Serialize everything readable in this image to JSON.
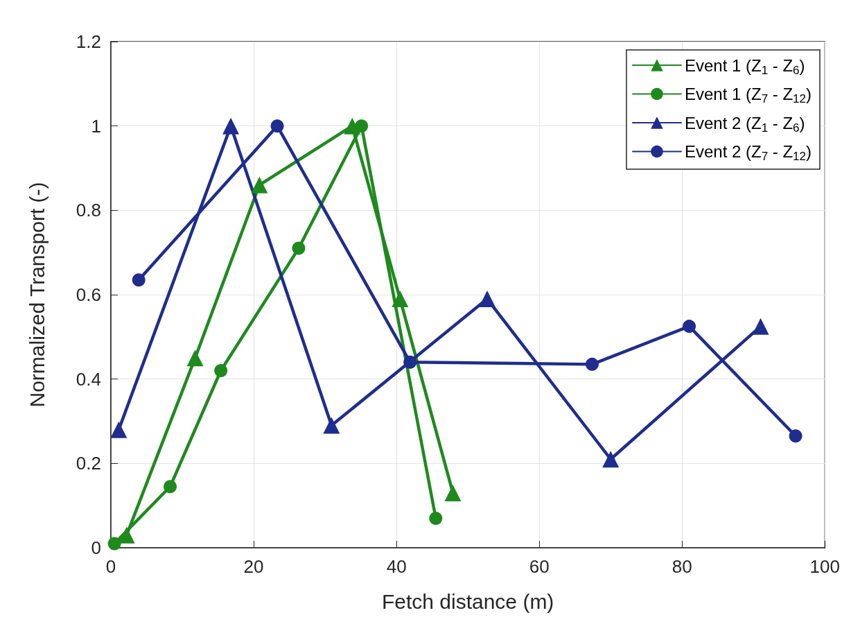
{
  "chart_data": {
    "type": "line",
    "xlabel": "Fetch distance (m)",
    "ylabel": "Normalized Transport (-)",
    "xlim": [
      0,
      100
    ],
    "xticks": [
      0,
      20,
      40,
      60,
      80,
      100
    ],
    "ylim": [
      0,
      1.2
    ],
    "yticks": [
      0,
      0.2,
      0.4,
      0.6,
      0.8,
      1,
      1.2
    ],
    "grid": true,
    "legend": "top right",
    "line_style": "solid",
    "series": [
      {
        "name": "Event 1 (Z$_{1}$ - Z$_{6}$)",
        "color": "#1e8a1e",
        "marker": "triangle",
        "x": [
          2.2,
          11.8,
          20.8,
          33.8,
          40.5,
          47.9
        ],
        "values": [
          0.03,
          0.45,
          0.86,
          1.0,
          0.59,
          0.13
        ]
      },
      {
        "name": "Event 1 (Z$_{7}$ - Z$_{12}$)",
        "color": "#1e8a1e",
        "marker": "circle",
        "x": [
          0.5,
          8.3,
          15.4,
          26.3,
          35.1,
          45.5
        ],
        "values": [
          0.01,
          0.145,
          0.42,
          0.71,
          1.0,
          0.07
        ]
      },
      {
        "name": "Event 2 (Z$_{1}$ - Z$_{6}$)",
        "color": "#1f2d8f",
        "marker": "triangle",
        "x": [
          1.1,
          16.8,
          30.9,
          52.7,
          70,
          91
        ],
        "values": [
          0.28,
          1.0,
          0.29,
          0.59,
          0.21,
          0.525
        ]
      },
      {
        "name": "Event 2 (Z$_{7}$ - Z$_{12}$)",
        "color": "#1f2d8f",
        "marker": "circle",
        "x": [
          3.9,
          23.3,
          41.9,
          67.4,
          81,
          95.9
        ],
        "values": [
          0.635,
          1.0,
          0.44,
          0.435,
          0.525,
          0.265
        ]
      }
    ]
  }
}
